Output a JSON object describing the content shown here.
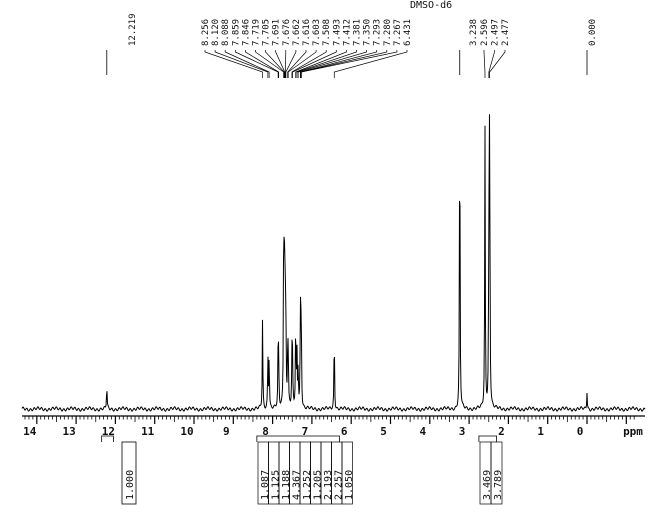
{
  "header_fragment": "DMSO-d6",
  "chart_data": {
    "type": "line",
    "title": "",
    "xlabel": "ppm",
    "ylabel": "",
    "xlim": [
      14.9,
      -1.5
    ],
    "x_reversed": true,
    "grid": false,
    "legend": "none",
    "color": "#000000",
    "x_ticks": [
      14,
      13,
      12,
      11,
      10,
      9,
      8,
      7,
      6,
      5,
      4,
      3,
      2,
      1,
      0
    ],
    "peaks": [
      {
        "ppm": 12.219,
        "height": 0.075
      },
      {
        "ppm": 8.256,
        "height": 0.28
      },
      {
        "ppm": 8.12,
        "height": 0.17
      },
      {
        "ppm": 8.088,
        "height": 0.17
      },
      {
        "ppm": 7.859,
        "height": 0.18
      },
      {
        "ppm": 7.846,
        "height": 0.14
      },
      {
        "ppm": 7.719,
        "height": 0.44
      },
      {
        "ppm": 7.705,
        "height": 0.34
      },
      {
        "ppm": 7.691,
        "height": 0.36
      },
      {
        "ppm": 7.676,
        "height": 0.25
      },
      {
        "ppm": 7.662,
        "height": 0.2
      },
      {
        "ppm": 7.616,
        "height": 0.16
      },
      {
        "ppm": 7.603,
        "height": 0.16
      },
      {
        "ppm": 7.508,
        "height": 0.17
      },
      {
        "ppm": 7.493,
        "height": 0.14
      },
      {
        "ppm": 7.412,
        "height": 0.28
      },
      {
        "ppm": 7.381,
        "height": 0.17
      },
      {
        "ppm": 7.35,
        "height": 0.13
      },
      {
        "ppm": 7.293,
        "height": 0.27
      },
      {
        "ppm": 7.28,
        "height": 0.2
      },
      {
        "ppm": 7.267,
        "height": 0.16
      },
      {
        "ppm": 6.431,
        "height": 0.25
      },
      {
        "ppm": 3.238,
        "height": 1.0
      },
      {
        "ppm": 2.596,
        "height": 0.88
      },
      {
        "ppm": 2.497,
        "height": 0.55
      },
      {
        "ppm": 2.477,
        "height": 0.97
      },
      {
        "ppm": 0.0,
        "height": 0.055
      }
    ],
    "peak_label_groups": [
      {
        "labels": [
          "12.219"
        ],
        "anchor_ppm": 12.219
      },
      {
        "labels": [
          "8.256",
          "8.120",
          "8.088",
          "7.859",
          "7.846",
          "7.719",
          "7.705",
          "7.691",
          "7.676",
          "7.662",
          "7.616",
          "7.603",
          "7.508",
          "7.493",
          "7.412",
          "7.381",
          "7.350",
          "7.293",
          "7.280",
          "7.267",
          "6.431"
        ]
      },
      {
        "labels": [
          "3.238"
        ],
        "anchor_ppm": 3.238
      },
      {
        "labels": [
          "2.596",
          "2.497",
          "2.477"
        ]
      },
      {
        "labels": [
          "0.000"
        ],
        "anchor_ppm": 0.0
      }
    ],
    "integrals": [
      {
        "value": "1.000",
        "from_ppm": 12.35,
        "to_ppm": 12.05
      },
      {
        "value": "1.087",
        "from_ppm": 8.4,
        "to_ppm": 6.3
      },
      {
        "value": "1.125"
      },
      {
        "value": "1.188"
      },
      {
        "value": "4.367"
      },
      {
        "value": "1.252"
      },
      {
        "value": "1.205"
      },
      {
        "value": "2.193"
      },
      {
        "value": "2.257"
      },
      {
        "value": "1.050"
      },
      {
        "value": "3.469",
        "from_ppm": 2.75,
        "to_ppm": 2.3
      },
      {
        "value": "3.789"
      }
    ]
  }
}
